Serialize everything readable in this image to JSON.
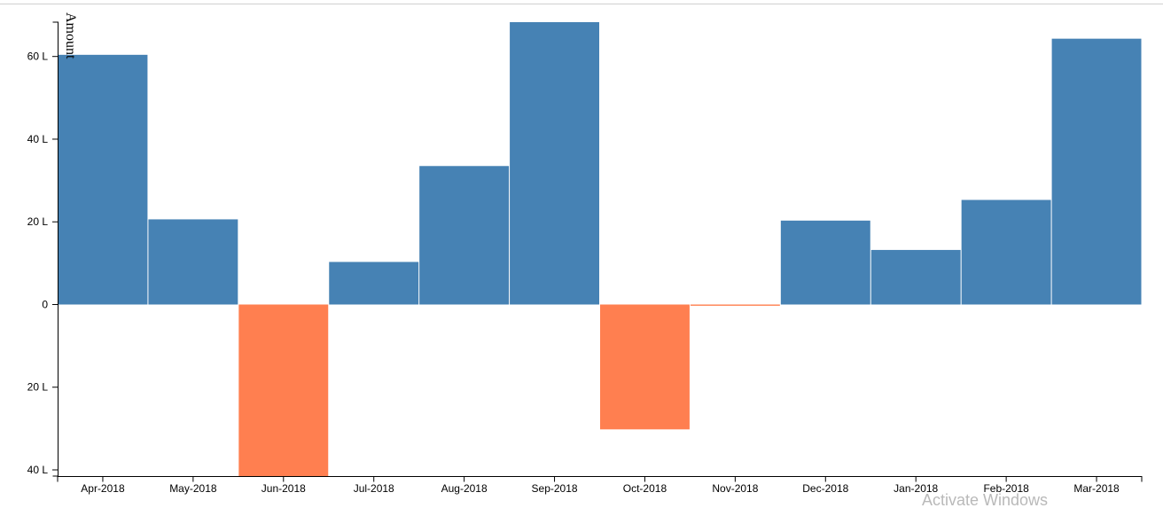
{
  "chart_data": {
    "type": "bar",
    "ylabel": "Amount",
    "categories": [
      "Apr-2018",
      "May-2018",
      "Jun-2018",
      "Jul-2018",
      "Aug-2018",
      "Sep-2018",
      "Oct-2018",
      "Nov-2018",
      "Dec-2018",
      "Jan-2018",
      "Feb-2018",
      "Mar-2018"
    ],
    "values": [
      60.4,
      20.6,
      -41.5,
      10.3,
      33.5,
      68.3,
      -30.2,
      -0.3,
      20.3,
      13.2,
      25.3,
      64.3
    ],
    "ylim": [
      -41.5,
      68.3
    ],
    "yticks": [
      {
        "value": 60,
        "label": "60 L"
      },
      {
        "value": 40,
        "label": "40 L"
      },
      {
        "value": 20,
        "label": "20 L"
      },
      {
        "value": 0,
        "label": "0"
      },
      {
        "value": -20,
        "label": "20 L"
      },
      {
        "value": -40,
        "label": "40 L"
      }
    ],
    "colors": {
      "positive": "#4682b4",
      "negative": "#ff7f50"
    },
    "grid": false,
    "legend": "none"
  },
  "watermark": "Activate Windows"
}
